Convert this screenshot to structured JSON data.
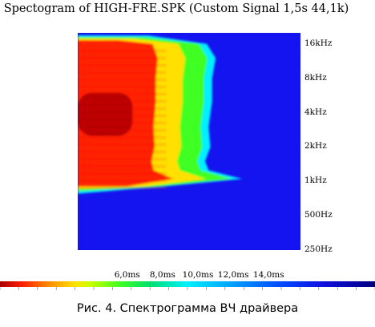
{
  "chart_data": {
    "type": "heatmap",
    "title": "Spectogram of HIGH-FRE.SPK (Custom Signal 1,5s 44,1k)",
    "xlabel": "",
    "ylabel": "",
    "x_ticks": [
      {
        "label": "6,0ms",
        "value": 6.0
      },
      {
        "label": "8,0ms",
        "value": 8.0
      },
      {
        "label": "10,0ms",
        "value": 10.0
      },
      {
        "label": "12,0ms",
        "value": 12.0
      },
      {
        "label": "14,0ms",
        "value": 14.0
      }
    ],
    "xlim": [
      3.2,
      15.8
    ],
    "y_scale": "log",
    "y_ticks": [
      {
        "label": "16kHz",
        "value": 16000
      },
      {
        "label": "8kHz",
        "value": 8000
      },
      {
        "label": "4kHz",
        "value": 4000
      },
      {
        "label": "2kHz",
        "value": 2000
      },
      {
        "label": "1kHz",
        "value": 1000
      },
      {
        "label": "500Hz",
        "value": 500
      },
      {
        "label": "250Hz",
        "value": 250
      }
    ],
    "ylim": [
      250,
      20000
    ],
    "decay_time_ms": [
      {
        "freq_hz": 19000,
        "t": 7.2
      },
      {
        "freq_hz": 16000,
        "t": 10.5
      },
      {
        "freq_hz": 12000,
        "t": 11.0
      },
      {
        "freq_hz": 8000,
        "t": 10.8
      },
      {
        "freq_hz": 5000,
        "t": 10.8
      },
      {
        "freq_hz": 3000,
        "t": 10.6
      },
      {
        "freq_hz": 2000,
        "t": 10.7
      },
      {
        "freq_hz": 1500,
        "t": 10.4
      },
      {
        "freq_hz": 1250,
        "t": 10.6
      },
      {
        "freq_hz": 1050,
        "t": 12.5
      },
      {
        "freq_hz": 900,
        "t": 8.0
      },
      {
        "freq_hz": 780,
        "t": 3.2
      }
    ],
    "peak_energy_band_hz": [
      2500,
      6000
    ],
    "colormap": [
      "#aa0000",
      "#ff2000",
      "#ffe000",
      "#40ff20",
      "#00f0ff",
      "#1414f0"
    ]
  },
  "caption": "Рис. 4. Спектрограмма ВЧ драйвера"
}
